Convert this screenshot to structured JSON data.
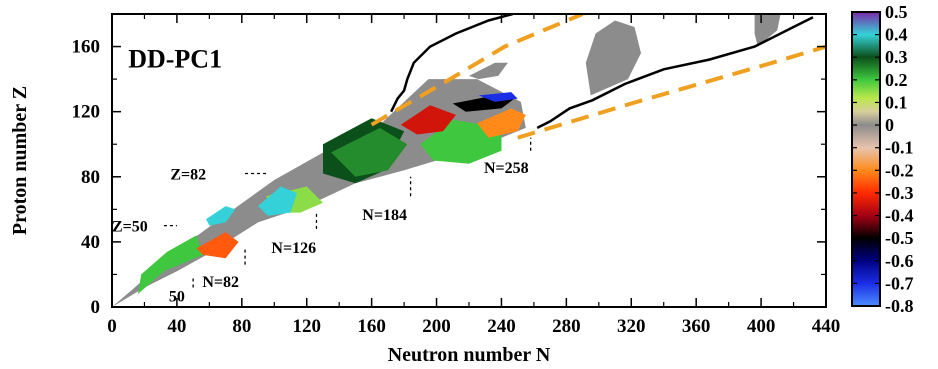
{
  "chart_data": {
    "type": "heatmap",
    "title": "DD-PC1",
    "xlabel": "Neutron number  N",
    "ylabel": "Proton number  Z",
    "xlim": [
      0,
      440
    ],
    "ylim": [
      0,
      180
    ],
    "xticks": [
      0,
      40,
      80,
      120,
      160,
      200,
      240,
      280,
      320,
      360,
      400,
      440
    ],
    "yticks": [
      0,
      40,
      80,
      120,
      160
    ],
    "xtick_labels": [
      "0",
      "40",
      "80",
      "120",
      "160",
      "200",
      "240",
      "280",
      "320",
      "360",
      "400",
      "440"
    ],
    "ytick_labels": [
      "0",
      "40",
      "80",
      "120",
      "160"
    ],
    "colorbar": {
      "min": -0.8,
      "max": 0.5,
      "ticks": [
        "0.5",
        "0.4",
        "0.3",
        "0.2",
        "0.1",
        "0",
        "-0.1",
        "-0.2",
        "-0.3",
        "-0.4",
        "-0.5",
        "-0.6",
        "-0.7",
        "-0.8"
      ],
      "stops": [
        {
          "v": 0.5,
          "color": "#7a2aa8"
        },
        {
          "v": 0.4,
          "color": "#34d2d8"
        },
        {
          "v": 0.3,
          "color": "#0b4f1a"
        },
        {
          "v": 0.2,
          "color": "#3fc83f"
        },
        {
          "v": 0.12,
          "color": "#b9e84a"
        },
        {
          "v": 0.06,
          "color": "#d8cf9b"
        },
        {
          "v": 0.0,
          "color": "#8c8c8c"
        },
        {
          "v": -0.1,
          "color": "#e7c4ad"
        },
        {
          "v": -0.2,
          "color": "#ff8a1a"
        },
        {
          "v": -0.3,
          "color": "#ff2a00"
        },
        {
          "v": -0.4,
          "color": "#a50015"
        },
        {
          "v": -0.5,
          "color": "#000000"
        },
        {
          "v": -0.6,
          "color": "#000080"
        },
        {
          "v": -0.7,
          "color": "#1a2ee6"
        },
        {
          "v": -0.8,
          "color": "#4d8cff"
        }
      ]
    },
    "annotations": [
      {
        "text": "Z=50",
        "N": 11,
        "Z": 50
      },
      {
        "text": "Z=82",
        "N": 47,
        "Z": 82
      },
      {
        "text": "50",
        "N": 40,
        "Z": 7
      },
      {
        "text": "N=82",
        "N": 67,
        "Z": 16
      },
      {
        "text": "N=126",
        "N": 112,
        "Z": 37
      },
      {
        "text": "N=184",
        "N": 168,
        "Z": 57
      },
      {
        "text": "N=258",
        "N": 243,
        "Z": 86
      }
    ],
    "magic_markers": [
      {
        "kind": "Z",
        "value": 50,
        "N_from": 32,
        "N_to": 40
      },
      {
        "kind": "Z",
        "value": 82,
        "N_from": 82,
        "N_to": 95
      },
      {
        "kind": "N",
        "value": 50,
        "Z_from": 12,
        "Z_to": 18
      },
      {
        "kind": "N",
        "value": 82,
        "Z_from": 26,
        "Z_to": 37
      },
      {
        "kind": "N",
        "value": 126,
        "Z_from": 48,
        "Z_to": 58
      },
      {
        "kind": "N",
        "value": 184,
        "Z_from": 68,
        "Z_to": 80
      },
      {
        "kind": "N",
        "value": 258,
        "Z_from": 96,
        "Z_to": 104
      }
    ],
    "series": [
      {
        "type": "line",
        "style": "solid",
        "color": "#000000",
        "points": [
          [
            172,
            120
          ],
          [
            176,
            128
          ],
          [
            180,
            133
          ],
          [
            182,
            140
          ],
          [
            186,
            150
          ],
          [
            196,
            160
          ],
          [
            212,
            168
          ],
          [
            232,
            176
          ],
          [
            247,
            180
          ]
        ]
      },
      {
        "type": "line",
        "style": "solid",
        "color": "#000000",
        "points": [
          [
            262,
            110
          ],
          [
            270,
            114
          ],
          [
            282,
            122
          ],
          [
            296,
            127
          ],
          [
            316,
            137
          ],
          [
            340,
            146
          ],
          [
            368,
            152
          ],
          [
            396,
            160
          ],
          [
            420,
            172
          ],
          [
            432,
            178
          ]
        ]
      },
      {
        "type": "line",
        "style": "dashed",
        "color": "#f0a020",
        "points": [
          [
            160,
            112
          ],
          [
            210,
            141
          ],
          [
            242,
            160
          ],
          [
            290,
            180
          ]
        ]
      },
      {
        "type": "line",
        "style": "dashed",
        "color": "#f0a020",
        "points": [
          [
            250,
            104
          ],
          [
            320,
            125
          ],
          [
            400,
            148
          ],
          [
            440,
            160
          ]
        ]
      }
    ],
    "regions": [
      {
        "value": 0.0,
        "points": [
          [
            0,
            0
          ],
          [
            20,
            12
          ],
          [
            40,
            22
          ],
          [
            60,
            33
          ],
          [
            90,
            52
          ],
          [
            120,
            62
          ],
          [
            150,
            76
          ],
          [
            180,
            84
          ],
          [
            210,
            93
          ],
          [
            240,
            104
          ],
          [
            255,
            110
          ],
          [
            252,
            126
          ],
          [
            225,
            140
          ],
          [
            195,
            140
          ],
          [
            165,
            112
          ],
          [
            132,
            96
          ],
          [
            100,
            78
          ],
          [
            72,
            58
          ],
          [
            50,
            42
          ],
          [
            32,
            28
          ],
          [
            14,
            12
          ]
        ]
      },
      {
        "value": 0.2,
        "points": [
          [
            16,
            8
          ],
          [
            32,
            22
          ],
          [
            56,
            32
          ],
          [
            52,
            44
          ],
          [
            34,
            34
          ],
          [
            18,
            20
          ]
        ]
      },
      {
        "value": 0.3,
        "points": [
          [
            130,
            100
          ],
          [
            160,
            116
          ],
          [
            180,
            108
          ],
          [
            168,
            84
          ],
          [
            150,
            76
          ],
          [
            130,
            82
          ]
        ]
      },
      {
        "value": 0.25,
        "points": [
          [
            135,
            95
          ],
          [
            165,
            110
          ],
          [
            182,
            100
          ],
          [
            170,
            84
          ],
          [
            150,
            80
          ]
        ]
      },
      {
        "value": 0.2,
        "points": [
          [
            190,
            100
          ],
          [
            210,
            115
          ],
          [
            240,
            110
          ],
          [
            240,
            96
          ],
          [
            220,
            88
          ],
          [
            198,
            90
          ]
        ]
      },
      {
        "value": 0.15,
        "points": [
          [
            95,
            68
          ],
          [
            120,
            74
          ],
          [
            130,
            64
          ],
          [
            116,
            58
          ],
          [
            100,
            58
          ]
        ]
      },
      {
        "value": 0.4,
        "points": [
          [
            90,
            62
          ],
          [
            104,
            74
          ],
          [
            114,
            70
          ],
          [
            110,
            58
          ],
          [
            96,
            56
          ]
        ]
      },
      {
        "value": 0.4,
        "points": [
          [
            58,
            54
          ],
          [
            70,
            62
          ],
          [
            76,
            60
          ],
          [
            70,
            52
          ],
          [
            60,
            50
          ]
        ]
      },
      {
        "value": -0.25,
        "points": [
          [
            52,
            36
          ],
          [
            70,
            46
          ],
          [
            78,
            40
          ],
          [
            70,
            30
          ],
          [
            56,
            32
          ]
        ]
      },
      {
        "value": -0.2,
        "points": [
          [
            225,
            113
          ],
          [
            246,
            122
          ],
          [
            255,
            118
          ],
          [
            250,
            108
          ],
          [
            232,
            104
          ]
        ]
      },
      {
        "value": -0.35,
        "points": [
          [
            178,
            112
          ],
          [
            196,
            124
          ],
          [
            212,
            118
          ],
          [
            204,
            108
          ],
          [
            188,
            106
          ]
        ]
      },
      {
        "value": -0.5,
        "points": [
          [
            210,
            125
          ],
          [
            236,
            130
          ],
          [
            248,
            128
          ],
          [
            240,
            122
          ],
          [
            218,
            120
          ]
        ]
      },
      {
        "value": -0.7,
        "points": [
          [
            226,
            130
          ],
          [
            246,
            132
          ],
          [
            250,
            128
          ],
          [
            236,
            126
          ]
        ]
      },
      {
        "value": 0.0,
        "points": [
          [
            295,
            130
          ],
          [
            318,
            140
          ],
          [
            326,
            156
          ],
          [
            322,
            172
          ],
          [
            310,
            176
          ],
          [
            298,
            168
          ],
          [
            292,
            150
          ]
        ]
      },
      {
        "value": 0.0,
        "points": [
          [
            220,
            142
          ],
          [
            236,
            150
          ],
          [
            244,
            150
          ],
          [
            238,
            142
          ],
          [
            226,
            140
          ]
        ]
      },
      {
        "value": 0.0,
        "points": [
          [
            398,
            160
          ],
          [
            410,
            170
          ],
          [
            412,
            180
          ],
          [
            396,
            180
          ],
          [
            396,
            168
          ]
        ]
      }
    ]
  }
}
